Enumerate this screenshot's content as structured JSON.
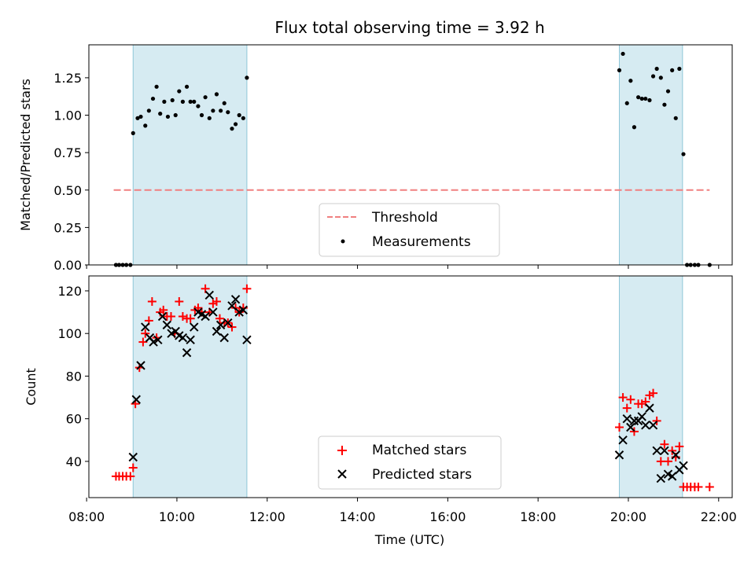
{
  "chart_data": [
    {
      "type": "scatter",
      "title": "Flux total observing time = 3.92 h",
      "ylabel": "Matched/Predicted stars",
      "xlabel": "",
      "xlim": [
        8.05,
        22.3
      ],
      "ylim": [
        0,
        1.47
      ],
      "yticks": [
        0.0,
        0.25,
        0.5,
        0.75,
        1.0,
        1.25
      ],
      "ytick_labels": [
        "0.00",
        "0.25",
        "0.50",
        "0.75",
        "1.00",
        "1.25"
      ],
      "legend_position": "lower-center",
      "shaded_intervals": [
        [
          9.03,
          11.55
        ],
        [
          19.8,
          21.2
        ]
      ],
      "series": [
        {
          "name": "Threshold",
          "style": "dashed-line",
          "color": "#f08080",
          "x": [
            8.6,
            21.8
          ],
          "y": [
            0.5,
            0.5
          ]
        },
        {
          "name": "Measurements",
          "style": "dot",
          "color": "#000000",
          "x": [
            8.65,
            8.72,
            8.8,
            8.88,
            8.97,
            9.03,
            9.13,
            9.2,
            9.3,
            9.38,
            9.47,
            9.55,
            9.63,
            9.72,
            9.8,
            9.9,
            9.97,
            10.05,
            10.13,
            10.22,
            10.3,
            10.38,
            10.47,
            10.55,
            10.63,
            10.72,
            10.8,
            10.88,
            10.97,
            11.05,
            11.13,
            11.22,
            11.3,
            11.38,
            11.47,
            11.55,
            19.8,
            19.88,
            19.97,
            20.05,
            20.13,
            20.22,
            20.3,
            20.38,
            20.47,
            20.55,
            20.63,
            20.72,
            20.8,
            20.88,
            20.97,
            21.05,
            21.13,
            21.22,
            21.3,
            21.38,
            21.47,
            21.55,
            21.8
          ],
          "y": [
            0.0,
            0.0,
            0.0,
            0.0,
            0.0,
            0.88,
            0.98,
            0.99,
            0.93,
            1.03,
            1.11,
            1.19,
            1.01,
            1.09,
            0.99,
            1.1,
            1.0,
            1.16,
            1.09,
            1.19,
            1.09,
            1.09,
            1.06,
            1.0,
            1.12,
            0.98,
            1.03,
            1.14,
            1.03,
            1.08,
            1.02,
            0.91,
            0.94,
            1.0,
            0.98,
            1.25,
            1.3,
            1.41,
            1.08,
            1.23,
            0.92,
            1.12,
            1.11,
            1.11,
            1.1,
            1.26,
            1.31,
            1.25,
            1.07,
            1.16,
            1.3,
            0.98,
            1.31,
            0.74,
            0.0,
            0.0,
            0.0,
            0.0,
            0.0
          ]
        }
      ]
    },
    {
      "type": "scatter",
      "title": "",
      "xlabel": "Time (UTC)",
      "ylabel": "Count",
      "xlim": [
        8.05,
        22.3
      ],
      "ylim": [
        23,
        127
      ],
      "yticks": [
        40,
        60,
        80,
        100,
        120
      ],
      "ytick_labels": [
        "40",
        "60",
        "80",
        "100",
        "120"
      ],
      "xticks": [
        8,
        10,
        12,
        14,
        16,
        18,
        20,
        22
      ],
      "xtick_labels": [
        "08:00",
        "10:00",
        "12:00",
        "14:00",
        "16:00",
        "18:00",
        "20:00",
        "22:00"
      ],
      "legend_position": "lower-center",
      "shaded_intervals": [
        [
          9.03,
          11.55
        ],
        [
          19.8,
          21.2
        ]
      ],
      "series": [
        {
          "name": "Matched stars",
          "style": "plus",
          "color": "#ff0000",
          "x": [
            8.65,
            8.72,
            8.8,
            8.88,
            8.97,
            9.03,
            9.08,
            9.17,
            9.25,
            9.3,
            9.38,
            9.45,
            9.55,
            9.63,
            9.7,
            9.78,
            9.87,
            9.95,
            10.05,
            10.13,
            10.22,
            10.3,
            10.4,
            10.47,
            10.55,
            10.63,
            10.72,
            10.8,
            10.88,
            10.95,
            11.05,
            11.13,
            11.22,
            11.3,
            11.38,
            11.47,
            11.55,
            19.8,
            19.88,
            19.97,
            20.05,
            20.13,
            20.22,
            20.3,
            20.38,
            20.47,
            20.55,
            20.63,
            20.72,
            20.8,
            20.88,
            20.97,
            21.05,
            21.13,
            21.22,
            21.3,
            21.38,
            21.47,
            21.55,
            21.8
          ],
          "y": [
            33,
            33,
            33,
            33,
            33,
            37,
            67,
            84,
            96,
            100,
            106,
            115,
            98,
            110,
            111,
            108,
            108,
            100,
            115,
            108,
            107,
            107,
            111,
            112,
            110,
            121,
            110,
            114,
            115,
            107,
            105,
            105,
            103,
            112,
            110,
            112,
            121,
            56,
            70,
            65,
            69,
            54,
            67,
            67,
            68,
            71,
            72,
            59,
            40,
            48,
            40,
            45,
            42,
            47,
            28,
            28,
            28,
            28,
            28,
            28
          ]
        },
        {
          "name": "Predicted stars",
          "style": "x",
          "color": "#000000",
          "x": [
            9.03,
            9.1,
            9.2,
            9.3,
            9.4,
            9.48,
            9.58,
            9.68,
            9.78,
            9.88,
            9.97,
            10.05,
            10.13,
            10.22,
            10.3,
            10.38,
            10.47,
            10.55,
            10.63,
            10.72,
            10.8,
            10.88,
            10.97,
            11.05,
            11.13,
            11.22,
            11.3,
            11.38,
            11.47,
            11.55,
            19.8,
            19.88,
            19.97,
            20.05,
            20.13,
            20.22,
            20.3,
            20.38,
            20.47,
            20.55,
            20.63,
            20.72,
            20.8,
            20.88,
            20.97,
            21.05,
            21.13,
            21.22
          ],
          "y": [
            42,
            69,
            85,
            103,
            98,
            96,
            97,
            108,
            104,
            100,
            101,
            99,
            98,
            91,
            97,
            103,
            110,
            109,
            108,
            118,
            110,
            101,
            104,
            98,
            105,
            113,
            116,
            110,
            111,
            97,
            43,
            50,
            60,
            56,
            59,
            59,
            61,
            57,
            65,
            57,
            45,
            32,
            45,
            34,
            33,
            43,
            36,
            38
          ]
        }
      ]
    }
  ]
}
